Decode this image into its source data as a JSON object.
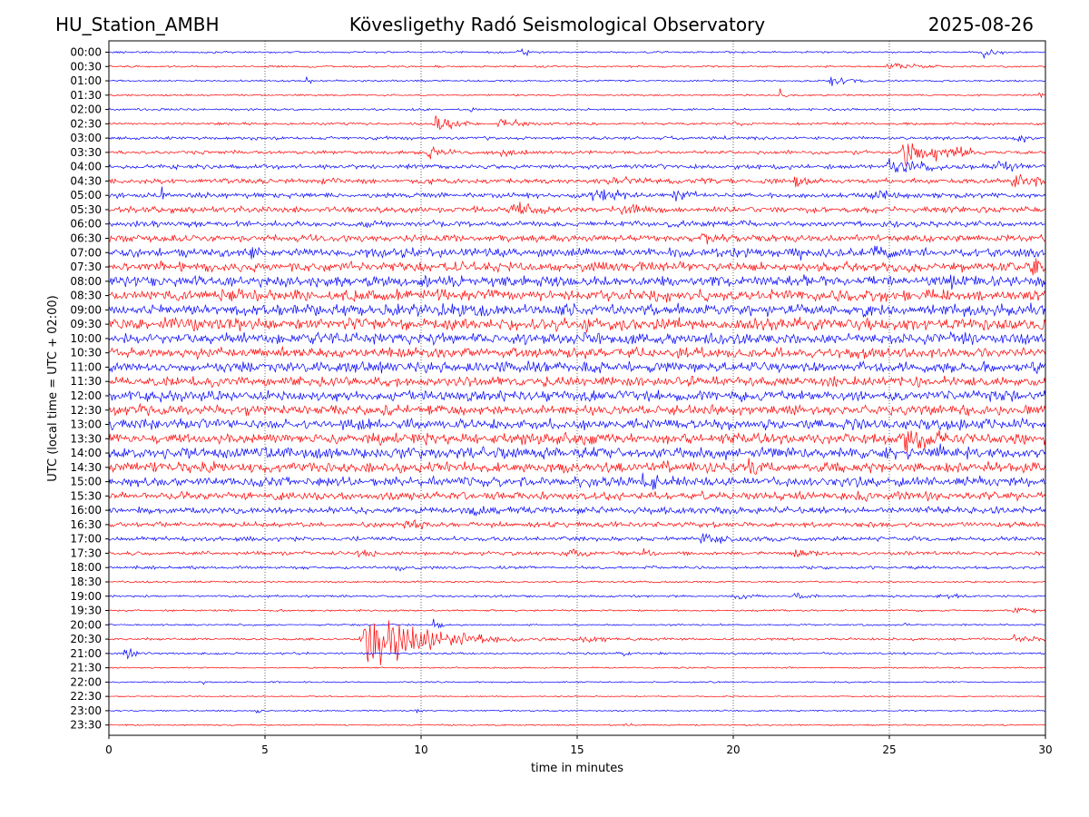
{
  "header": {
    "station": "HU_Station_AMBH",
    "observatory": "Kövesligethy Radó Seismological Observatory",
    "date": "2025-08-26"
  },
  "chart_data": {
    "type": "line",
    "title": "Kövesligethy Radó Seismological Observatory",
    "xlabel": "time in minutes",
    "ylabel": "UTC (local time = UTC + 02:00)",
    "xlim": [
      0,
      30
    ],
    "x_ticks": [
      0,
      5,
      10,
      15,
      20,
      25,
      30
    ],
    "grid": "vertical dotted",
    "trace_colors": [
      "#0000ff",
      "#ff0000"
    ],
    "rows": [
      {
        "label": "00:00",
        "noise": 0.25,
        "events": [
          {
            "t": 13.1,
            "amp": 3.0,
            "dur": 0.3
          },
          {
            "t": 28.0,
            "amp": 1.6,
            "dur": 0.8
          }
        ]
      },
      {
        "label": "00:30",
        "noise": 0.25,
        "events": [
          {
            "t": 25.0,
            "amp": 1.4,
            "dur": 1.5
          }
        ]
      },
      {
        "label": "01:00",
        "noise": 0.25,
        "events": [
          {
            "t": 6.3,
            "amp": 1.2,
            "dur": 0.3
          },
          {
            "t": 23.1,
            "amp": 1.8,
            "dur": 1.0
          }
        ]
      },
      {
        "label": "01:30",
        "noise": 0.25,
        "events": [
          {
            "t": 21.5,
            "amp": 3.2,
            "dur": 0.2
          },
          {
            "t": 29.8,
            "amp": 2.0,
            "dur": 0.2
          }
        ]
      },
      {
        "label": "02:00",
        "noise": 0.3,
        "events": [
          {
            "t": 11.6,
            "amp": 0.8,
            "dur": 0.5
          }
        ]
      },
      {
        "label": "02:30",
        "noise": 0.35,
        "events": [
          {
            "t": 10.5,
            "amp": 2.6,
            "dur": 1.2
          },
          {
            "t": 12.5,
            "amp": 2.0,
            "dur": 1.2
          },
          {
            "t": 20.0,
            "amp": 1.0,
            "dur": 1.0
          }
        ]
      },
      {
        "label": "03:00",
        "noise": 0.45,
        "events": [
          {
            "t": 29.0,
            "amp": 1.6,
            "dur": 1.0
          }
        ]
      },
      {
        "label": "03:30",
        "noise": 0.5,
        "events": [
          {
            "t": 10.2,
            "amp": 2.2,
            "dur": 1.2
          },
          {
            "t": 12.6,
            "amp": 2.0,
            "dur": 1.0
          },
          {
            "t": 25.5,
            "amp": 4.0,
            "dur": 2.0
          },
          {
            "t": 27.0,
            "amp": 3.0,
            "dur": 1.0
          }
        ]
      },
      {
        "label": "04:00",
        "noise": 0.6,
        "events": [
          {
            "t": 25.0,
            "amp": 2.6,
            "dur": 2.5
          },
          {
            "t": 28.5,
            "amp": 2.4,
            "dur": 1.0
          }
        ]
      },
      {
        "label": "04:30",
        "noise": 0.7,
        "events": [
          {
            "t": 16.0,
            "amp": 2.0,
            "dur": 2.0
          },
          {
            "t": 22.0,
            "amp": 2.2,
            "dur": 0.8
          },
          {
            "t": 29.0,
            "amp": 2.6,
            "dur": 1.5
          }
        ]
      },
      {
        "label": "05:00",
        "noise": 0.7,
        "events": [
          {
            "t": 1.7,
            "amp": 2.5,
            "dur": 0.3
          },
          {
            "t": 15.5,
            "amp": 2.5,
            "dur": 2.0
          },
          {
            "t": 18.0,
            "amp": 2.0,
            "dur": 1.5
          },
          {
            "t": 24.5,
            "amp": 2.0,
            "dur": 1.5
          }
        ]
      },
      {
        "label": "05:30",
        "noise": 0.8,
        "events": [
          {
            "t": 13.0,
            "amp": 2.4,
            "dur": 2.0
          },
          {
            "t": 16.5,
            "amp": 2.2,
            "dur": 1.5
          }
        ]
      },
      {
        "label": "06:00",
        "noise": 0.8,
        "events": [
          {
            "t": 8.2,
            "amp": 2.0,
            "dur": 1.0
          }
        ]
      },
      {
        "label": "06:30",
        "noise": 0.9,
        "events": [
          {
            "t": 19.0,
            "amp": 2.0,
            "dur": 2.0
          }
        ]
      },
      {
        "label": "07:00",
        "noise": 1.2,
        "events": [
          {
            "t": 4.5,
            "amp": 2.2,
            "dur": 1.5
          },
          {
            "t": 22.0,
            "amp": 2.5,
            "dur": 1.0
          },
          {
            "t": 24.5,
            "amp": 2.5,
            "dur": 1.5
          }
        ]
      },
      {
        "label": "07:30",
        "noise": 1.3,
        "events": [
          {
            "t": 17.0,
            "amp": 2.0,
            "dur": 2.0
          },
          {
            "t": 29.5,
            "amp": 3.0,
            "dur": 1.0
          }
        ]
      },
      {
        "label": "08:00",
        "noise": 1.5,
        "events": [
          {
            "t": 27.0,
            "amp": 2.5,
            "dur": 3.0
          }
        ]
      },
      {
        "label": "08:30",
        "noise": 1.6,
        "events": [
          {
            "t": 3.5,
            "amp": 2.0,
            "dur": 2.0
          }
        ]
      },
      {
        "label": "09:00",
        "noise": 1.6,
        "events": [
          {
            "t": 11.0,
            "amp": 2.8,
            "dur": 1.5
          }
        ]
      },
      {
        "label": "09:30",
        "noise": 1.7,
        "events": [
          {
            "t": 2.0,
            "amp": 2.2,
            "dur": 2.5
          },
          {
            "t": 27.5,
            "amp": 2.5,
            "dur": 0.8
          }
        ]
      },
      {
        "label": "10:00",
        "noise": 1.5,
        "events": [
          {
            "t": 8.5,
            "amp": 2.2,
            "dur": 0.5
          }
        ]
      },
      {
        "label": "10:30",
        "noise": 1.4,
        "events": []
      },
      {
        "label": "11:00",
        "noise": 1.4,
        "events": []
      },
      {
        "label": "11:30",
        "noise": 1.3,
        "events": []
      },
      {
        "label": "12:00",
        "noise": 1.4,
        "events": []
      },
      {
        "label": "12:30",
        "noise": 1.3,
        "events": []
      },
      {
        "label": "13:00",
        "noise": 1.4,
        "events": [
          {
            "t": 21.0,
            "amp": 2.0,
            "dur": 2.0
          }
        ]
      },
      {
        "label": "13:30",
        "noise": 1.5,
        "events": [
          {
            "t": 25.5,
            "amp": 3.5,
            "dur": 3.0
          }
        ]
      },
      {
        "label": "14:00",
        "noise": 1.5,
        "events": [
          {
            "t": 26.5,
            "amp": 3.0,
            "dur": 2.0
          }
        ]
      },
      {
        "label": "14:30",
        "noise": 1.4,
        "events": [
          {
            "t": 20.5,
            "amp": 2.8,
            "dur": 1.5
          }
        ]
      },
      {
        "label": "15:00",
        "noise": 1.3,
        "events": [
          {
            "t": 17.0,
            "amp": 2.8,
            "dur": 2.0
          }
        ]
      },
      {
        "label": "15:30",
        "noise": 1.1,
        "events": [
          {
            "t": 24.0,
            "amp": 2.2,
            "dur": 1.5
          }
        ]
      },
      {
        "label": "16:00",
        "noise": 0.9,
        "events": [
          {
            "t": 11.5,
            "amp": 2.5,
            "dur": 1.0
          }
        ]
      },
      {
        "label": "16:30",
        "noise": 0.7,
        "events": [
          {
            "t": 9.5,
            "amp": 1.6,
            "dur": 2.0
          }
        ]
      },
      {
        "label": "17:00",
        "noise": 0.6,
        "events": [
          {
            "t": 19.0,
            "amp": 2.2,
            "dur": 1.5
          }
        ]
      },
      {
        "label": "17:30",
        "noise": 0.5,
        "events": [
          {
            "t": 8.0,
            "amp": 1.8,
            "dur": 1.0
          },
          {
            "t": 14.5,
            "amp": 1.8,
            "dur": 1.5
          },
          {
            "t": 17.0,
            "amp": 1.6,
            "dur": 1.0
          },
          {
            "t": 22.0,
            "amp": 1.8,
            "dur": 1.0
          }
        ]
      },
      {
        "label": "18:00",
        "noise": 0.4,
        "events": [
          {
            "t": 9.2,
            "amp": 1.8,
            "dur": 0.4
          }
        ]
      },
      {
        "label": "18:30",
        "noise": 0.25,
        "events": []
      },
      {
        "label": "19:00",
        "noise": 0.3,
        "events": [
          {
            "t": 20.0,
            "amp": 1.2,
            "dur": 1.0
          },
          {
            "t": 22.0,
            "amp": 1.2,
            "dur": 1.0
          },
          {
            "t": 26.5,
            "amp": 1.6,
            "dur": 1.0
          }
        ]
      },
      {
        "label": "19:30",
        "noise": 0.25,
        "events": [
          {
            "t": 29.0,
            "amp": 1.4,
            "dur": 1.0
          }
        ]
      },
      {
        "label": "20:00",
        "noise": 0.25,
        "events": [
          {
            "t": 10.4,
            "amp": 2.5,
            "dur": 0.3
          },
          {
            "t": 25.5,
            "amp": 1.2,
            "dur": 0.2
          }
        ]
      },
      {
        "label": "20:30",
        "noise": 0.35,
        "events": [
          {
            "t": 8.3,
            "amp": 9.0,
            "dur": 2.5
          },
          {
            "t": 15.0,
            "amp": 1.2,
            "dur": 2.5
          },
          {
            "t": 29.0,
            "amp": 1.5,
            "dur": 1.5
          }
        ]
      },
      {
        "label": "21:00",
        "noise": 0.3,
        "events": [
          {
            "t": 0.5,
            "amp": 1.8,
            "dur": 0.8
          },
          {
            "t": 16.5,
            "amp": 1.4,
            "dur": 0.3
          }
        ]
      },
      {
        "label": "21:30",
        "noise": 0.2,
        "events": []
      },
      {
        "label": "22:00",
        "noise": 0.2,
        "events": [
          {
            "t": 3.0,
            "amp": 0.8,
            "dur": 0.3
          }
        ]
      },
      {
        "label": "22:30",
        "noise": 0.15,
        "events": []
      },
      {
        "label": "23:00",
        "noise": 0.2,
        "events": [
          {
            "t": 4.7,
            "amp": 1.0,
            "dur": 0.3
          },
          {
            "t": 9.8,
            "amp": 1.0,
            "dur": 0.3
          }
        ]
      },
      {
        "label": "23:30",
        "noise": 0.2,
        "events": [
          {
            "t": 16.5,
            "amp": 1.0,
            "dur": 0.3
          }
        ]
      }
    ]
  }
}
